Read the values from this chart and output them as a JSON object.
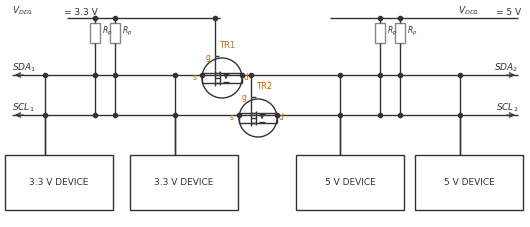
{
  "fig_width": 5.3,
  "fig_height": 2.27,
  "dpi": 100,
  "bg_color": "#ffffff",
  "line_color": "#333333",
  "orange_color": "#cc6600",
  "gray_color": "#888888",
  "vdd1_text": "V",
  "vdd1_sub": "DD1",
  "vdd1_val": " = 3.3 V",
  "vdd2_text": "V",
  "vdd2_sub": "DD2",
  "vdd2_val": " = 5 V",
  "sda1": "SDA",
  "sda1_sub": "1",
  "sda2": "SDA",
  "sda2_sub": "2",
  "scl1": "SCL",
  "scl1_sub": "1",
  "scl2": "SCL",
  "scl2_sub": "2",
  "tr1": "TR1",
  "tr2": "TR2",
  "rp": "R",
  "rp_sub": "p",
  "dev33": "3.3 V DEVICE",
  "dev5": "5 V DEVICE",
  "g_label": "g",
  "s_label": "s",
  "d_label": "d"
}
